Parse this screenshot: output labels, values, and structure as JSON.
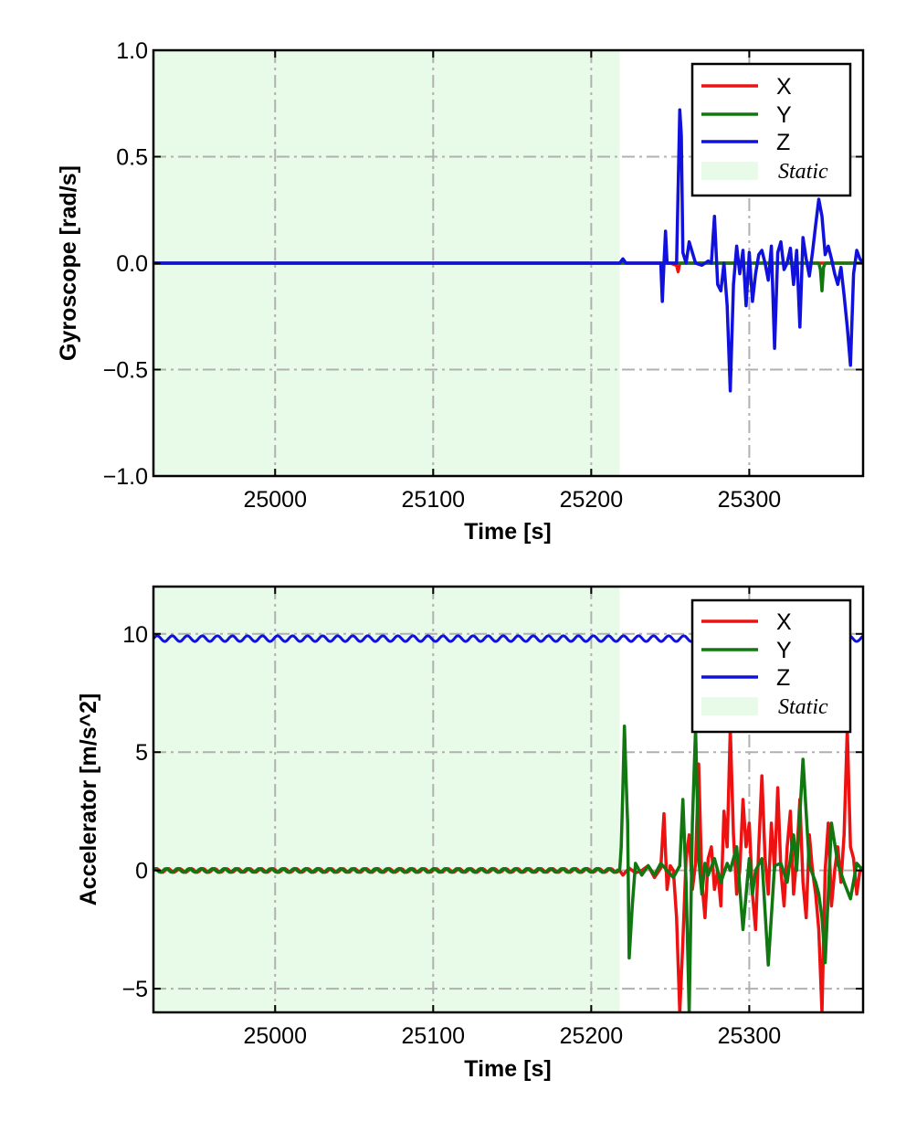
{
  "colors": {
    "x": "#ee1111",
    "y": "#117711",
    "z": "#1111dd",
    "static": "#e8fbe8",
    "grid": "#b0b0b0"
  },
  "chart_data": [
    {
      "type": "line",
      "ylabel": "Gyroscope [rad/s]",
      "xlabel": "Time [s]",
      "xlim": [
        24923,
        25372
      ],
      "ylim": [
        -1.0,
        1.0
      ],
      "xticks": [
        25000,
        25100,
        25200,
        25300
      ],
      "xtick_labels": [
        "25000",
        "25100",
        "25200",
        "25300"
      ],
      "yticks": [
        -1.0,
        -0.5,
        0.0,
        0.5,
        1.0
      ],
      "ytick_labels": [
        "−1.0",
        "−0.5",
        "0.0",
        "0.5",
        "1.0"
      ],
      "grid": true,
      "legend_position": "top-right",
      "static_region": {
        "label": "Static",
        "x_start": 24923,
        "x_end": 25218
      },
      "series": [
        {
          "name": "X",
          "color_key": "x",
          "x": [
            24923,
            25218,
            25250,
            25254,
            25255,
            25256,
            25258,
            25290,
            25372
          ],
          "y": [
            0,
            0,
            0,
            -0.01,
            -0.04,
            0.0,
            0.0,
            0.0,
            0
          ]
        },
        {
          "name": "Y",
          "color_key": "y",
          "x": [
            24923,
            25218,
            25300,
            25344,
            25345,
            25346,
            25347,
            25348,
            25372
          ],
          "y": [
            0,
            0,
            0,
            0,
            -0.03,
            -0.13,
            -0.02,
            0.0,
            0
          ]
        },
        {
          "name": "Z",
          "color_key": "z",
          "x": [
            24923,
            25218,
            25220,
            25222,
            25230,
            25244,
            25245,
            25246,
            25247,
            25248,
            25250,
            25252,
            25254,
            25256,
            25257,
            25258,
            25260,
            25262,
            25266,
            25270,
            25274,
            25276,
            25278,
            25280,
            25282,
            25284,
            25286,
            25288,
            25290,
            25292,
            25294,
            25296,
            25298,
            25300,
            25302,
            25304,
            25306,
            25308,
            25310,
            25312,
            25314,
            25316,
            25318,
            25320,
            25322,
            25324,
            25326,
            25328,
            25330,
            25332,
            25334,
            25336,
            25338,
            25340,
            25342,
            25344,
            25346,
            25348,
            25350,
            25352,
            25354,
            25356,
            25358,
            25360,
            25362,
            25364,
            25366,
            25368,
            25370,
            25372
          ],
          "y": [
            0,
            0,
            0.02,
            0.0,
            0.0,
            0.0,
            -0.18,
            0.0,
            0.15,
            0.0,
            0.0,
            0.0,
            0.0,
            0.72,
            0.6,
            0.05,
            0.0,
            0.1,
            0.0,
            -0.01,
            0.01,
            0.0,
            0.22,
            -0.1,
            -0.13,
            0.0,
            -0.2,
            -0.6,
            -0.1,
            0.08,
            -0.05,
            0.06,
            -0.2,
            0.05,
            -0.18,
            -0.05,
            0.04,
            0.06,
            0.0,
            -0.08,
            0.08,
            -0.4,
            0.05,
            0.1,
            -0.03,
            0.0,
            0.07,
            -0.1,
            0.06,
            -0.3,
            0.12,
            0.02,
            -0.06,
            0.05,
            0.18,
            0.3,
            0.22,
            0.04,
            0.08,
            0.02,
            -0.05,
            -0.1,
            -0.02,
            -0.15,
            -0.3,
            -0.48,
            -0.05,
            0.06,
            0.02,
            0
          ]
        }
      ]
    },
    {
      "type": "line",
      "ylabel": "Accelerator [m/s^2]",
      "xlabel": "Time [s]",
      "xlim": [
        24923,
        25372
      ],
      "ylim": [
        -6.0,
        12.0
      ],
      "xticks": [
        25000,
        25100,
        25200,
        25300
      ],
      "xtick_labels": [
        "25000",
        "25100",
        "25200",
        "25300"
      ],
      "yticks": [
        -5,
        0,
        5,
        10
      ],
      "ytick_labels": [
        "−5",
        "0",
        "5",
        "10"
      ],
      "grid": true,
      "legend_position": "top-right",
      "static_region": {
        "label": "Static",
        "x_start": 24923,
        "x_end": 25218
      },
      "series": [
        {
          "name": "X",
          "color_key": "x",
          "x": [
            24923,
            25218,
            25220,
            25224,
            25228,
            25232,
            25236,
            25240,
            25244,
            25246,
            25248,
            25250,
            25252,
            25254,
            25256,
            25258,
            25260,
            25262,
            25264,
            25266,
            25268,
            25270,
            25272,
            25274,
            25276,
            25278,
            25280,
            25282,
            25284,
            25286,
            25288,
            25290,
            25292,
            25294,
            25296,
            25298,
            25300,
            25302,
            25304,
            25306,
            25308,
            25310,
            25312,
            25314,
            25316,
            25318,
            25320,
            25322,
            25324,
            25326,
            25328,
            25330,
            25332,
            25334,
            25336,
            25338,
            25340,
            25342,
            25344,
            25346,
            25348,
            25350,
            25352,
            25354,
            25356,
            25358,
            25360,
            25362,
            25364,
            25366,
            25368,
            25370,
            25372
          ],
          "y": [
            0,
            0,
            -0.2,
            0.1,
            -0.1,
            0.0,
            0.2,
            -0.3,
            0.1,
            2.4,
            -0.8,
            0.2,
            0.0,
            -2.0,
            -6.0,
            -3.0,
            0.5,
            1.5,
            -0.8,
            0.3,
            4.5,
            -0.5,
            -2.0,
            0.5,
            1.0,
            -0.8,
            0.0,
            -1.5,
            2.5,
            1.0,
            6.0,
            1.5,
            -1.0,
            0.0,
            3.0,
            1.0,
            2.0,
            -1.0,
            -2.5,
            1.0,
            4.0,
            0.5,
            -1.0,
            2.0,
            0.0,
            3.5,
            0.0,
            -1.5,
            1.0,
            2.5,
            -1.0,
            0.5,
            3.0,
            -0.5,
            -2.0,
            1.5,
            0.0,
            -1.0,
            -2.5,
            -6.0,
            0.0,
            2.0,
            -1.5,
            0.0,
            1.0,
            -0.5,
            1.5,
            6.0,
            1.0,
            0.5,
            -1.0,
            0.0,
            0.0
          ]
        },
        {
          "name": "Y",
          "color_key": "y",
          "x": [
            24923,
            25218,
            25219,
            25220,
            25221,
            25222,
            25223,
            25224,
            25226,
            25228,
            25232,
            25236,
            25240,
            25244,
            25248,
            25252,
            25256,
            25258,
            25260,
            25262,
            25264,
            25266,
            25268,
            25270,
            25272,
            25274,
            25278,
            25282,
            25286,
            25288,
            25292,
            25296,
            25300,
            25302,
            25304,
            25308,
            25312,
            25316,
            25320,
            25324,
            25328,
            25330,
            25334,
            25338,
            25342,
            25344,
            25346,
            25348,
            25350,
            25352,
            25356,
            25360,
            25364,
            25368,
            25372
          ],
          "y": [
            0,
            0,
            1.0,
            3.5,
            6.1,
            4.0,
            2.0,
            -3.7,
            -1.5,
            0.3,
            -0.2,
            0.2,
            -0.2,
            0.3,
            0.0,
            -0.3,
            0.2,
            3.0,
            -0.5,
            -6.0,
            2.0,
            6.0,
            0.5,
            -1.0,
            0.3,
            -0.2,
            0.5,
            -0.5,
            0.3,
            0.0,
            1.0,
            -2.5,
            0.5,
            -1.0,
            0.0,
            0.5,
            -4.0,
            0.2,
            0.3,
            -0.5,
            1.5,
            0.0,
            4.7,
            0.2,
            -0.5,
            -1.0,
            -2.0,
            -3.9,
            -1.0,
            2.0,
            0.3,
            -0.5,
            -1.2,
            0.3,
            0.0
          ]
        },
        {
          "name": "Z",
          "color_key": "z",
          "x": [
            24923,
            25372
          ],
          "y": [
            9.8,
            9.8
          ]
        }
      ]
    }
  ]
}
